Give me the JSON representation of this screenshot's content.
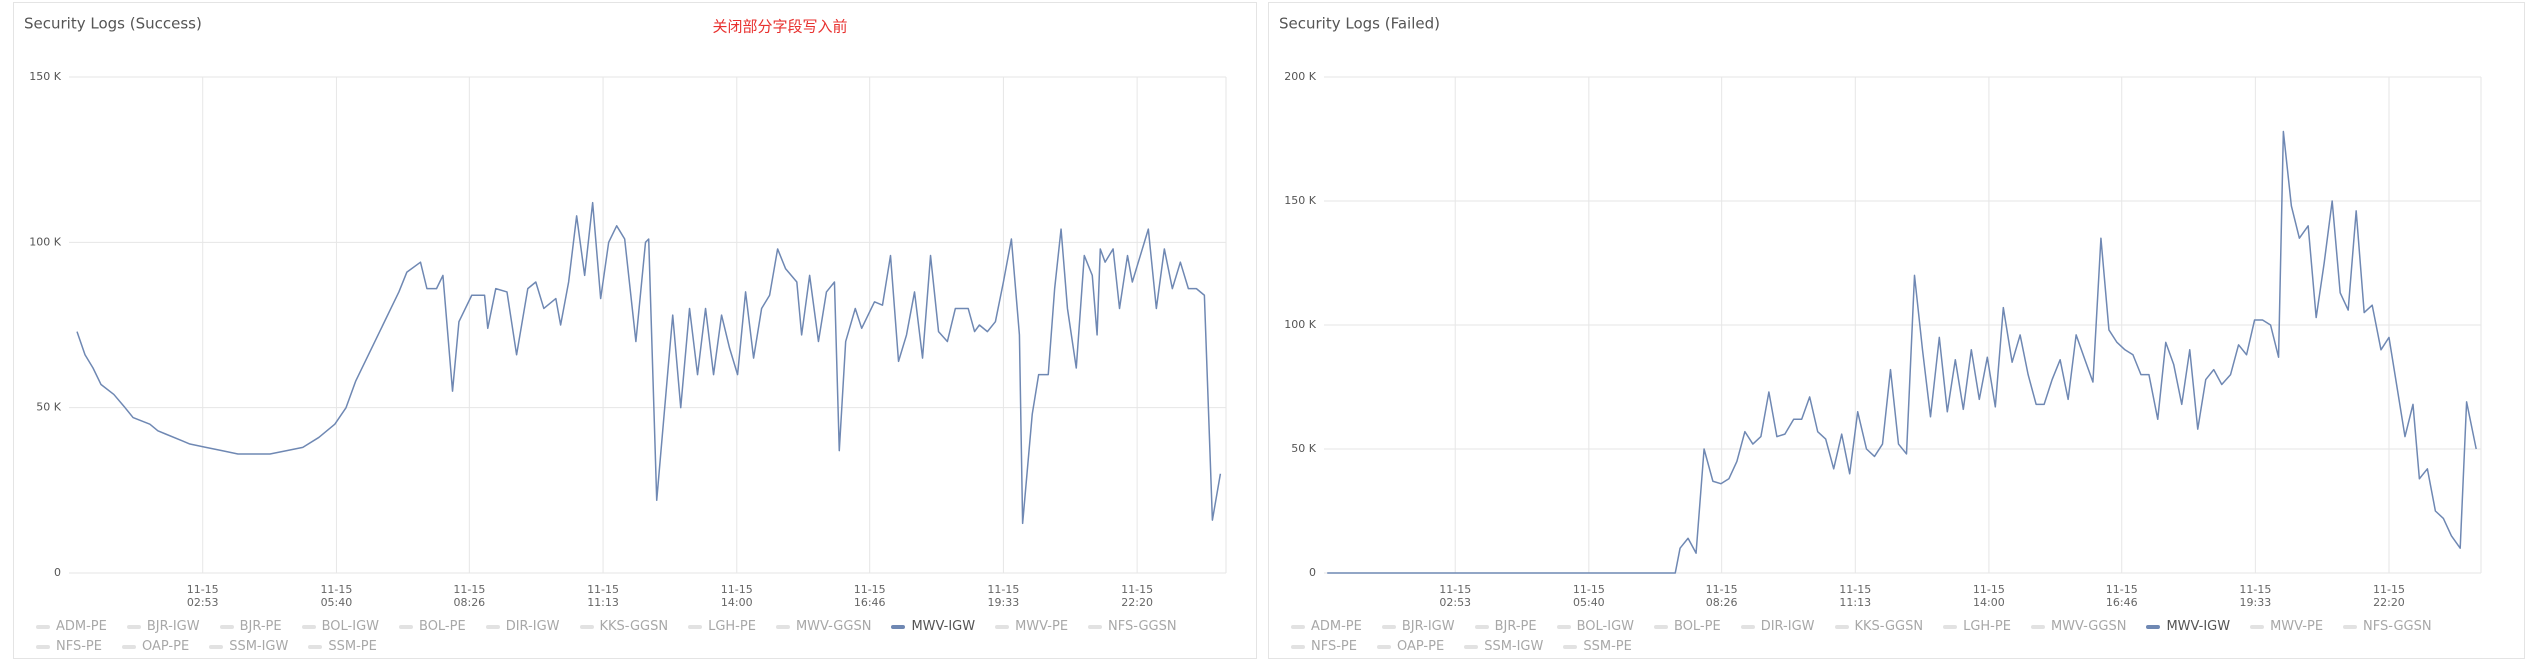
{
  "chart_data": [
    {
      "type": "line",
      "title": "Security Logs (Success)",
      "annotation": "关闭部分字段写入前",
      "xlim": [
        6,
        1451
      ],
      "ylim": [
        0,
        150000
      ],
      "grid": true,
      "xticks": [
        {
          "value": 173,
          "label": "11-15 02:53"
        },
        {
          "value": 340,
          "label": "11-15 05:40"
        },
        {
          "value": 506,
          "label": "11-15 08:26"
        },
        {
          "value": 673,
          "label": "11-15 11:13"
        },
        {
          "value": 840,
          "label": "11-15 14:00"
        },
        {
          "value": 1006,
          "label": "11-15 16:46"
        },
        {
          "value": 1173,
          "label": "11-15 19:33"
        },
        {
          "value": 1340,
          "label": "11-15 22:20"
        }
      ],
      "yticks": [
        0,
        {
          "value": 50000,
          "label": "50 K"
        },
        {
          "value": 100000,
          "label": "100 K"
        },
        {
          "value": 150000,
          "label": "150 K"
        }
      ],
      "x": [
        16,
        26,
        36,
        46,
        62,
        76,
        86,
        107,
        117,
        127,
        147,
        157,
        177,
        197,
        217,
        237,
        257,
        278,
        298,
        318,
        328,
        338,
        352,
        364,
        378,
        388,
        398,
        408,
        418,
        428,
        445,
        453,
        465,
        473,
        485,
        493,
        509,
        525,
        529,
        539,
        553,
        565,
        579,
        589,
        599,
        614,
        620,
        630,
        640,
        650,
        660,
        670,
        680,
        690,
        700,
        714,
        726,
        730,
        740,
        750,
        760,
        770,
        781,
        791,
        801,
        811,
        821,
        831,
        841,
        851,
        861,
        871,
        881,
        891,
        901,
        915,
        921,
        931,
        942,
        952,
        962,
        968,
        976,
        988,
        996,
        1012,
        1022,
        1032,
        1042,
        1052,
        1062,
        1072,
        1082,
        1092,
        1103,
        1113,
        1129,
        1137,
        1143,
        1153,
        1163,
        1173,
        1183,
        1193,
        1197,
        1209,
        1217,
        1229,
        1237,
        1245,
        1253,
        1264,
        1274,
        1284,
        1290,
        1294,
        1300,
        1310,
        1318,
        1328,
        1334,
        1344,
        1354,
        1364,
        1374,
        1384,
        1394,
        1404,
        1414,
        1424,
        1434,
        1444
      ],
      "series": [
        {
          "name": "MWV-IGW",
          "color": "#6f88b3",
          "values": [
            73000,
            66000,
            62000,
            57000,
            54000,
            50000,
            47000,
            45000,
            43000,
            42000,
            40000,
            39000,
            38000,
            37000,
            36000,
            36000,
            36000,
            37000,
            38000,
            41000,
            43000,
            45000,
            50000,
            58000,
            65000,
            70000,
            75000,
            80000,
            85000,
            91000,
            94000,
            86000,
            86000,
            90000,
            55000,
            76000,
            84000,
            84000,
            74000,
            86000,
            85000,
            66000,
            86000,
            88000,
            80000,
            83000,
            75000,
            88000,
            108000,
            90000,
            112000,
            83000,
            100000,
            105000,
            101000,
            70000,
            100000,
            101000,
            22000,
            50000,
            78000,
            50000,
            80000,
            60000,
            80000,
            60000,
            78000,
            68000,
            60000,
            85000,
            65000,
            80000,
            84000,
            98000,
            92000,
            88000,
            72000,
            90000,
            70000,
            85000,
            88000,
            37000,
            70000,
            80000,
            74000,
            82000,
            81000,
            96000,
            64000,
            72000,
            85000,
            65000,
            96000,
            73000,
            70000,
            80000,
            80000,
            73000,
            75000,
            73000,
            76000,
            88000,
            101000,
            72000,
            15000,
            48000,
            60000,
            60000,
            86000,
            104000,
            80000,
            62000,
            96000,
            90000,
            72000,
            98000,
            94000,
            98000,
            80000,
            96000,
            88000,
            96000,
            104000,
            80000,
            98000,
            86000,
            94000,
            86000,
            86000,
            84000,
            16000,
            30000
          ]
        }
      ],
      "legend": [
        {
          "name": "ADM-PE",
          "active": false
        },
        {
          "name": "BJR-IGW",
          "active": false
        },
        {
          "name": "BJR-PE",
          "active": false
        },
        {
          "name": "BOL-IGW",
          "active": false
        },
        {
          "name": "BOL-PE",
          "active": false
        },
        {
          "name": "DIR-IGW",
          "active": false
        },
        {
          "name": "KKS-GGSN",
          "active": false
        },
        {
          "name": "LGH-PE",
          "active": false
        },
        {
          "name": "MWV-GGSN",
          "active": false
        },
        {
          "name": "MWV-IGW",
          "active": true
        },
        {
          "name": "MWV-PE",
          "active": false
        },
        {
          "name": "NFS-GGSN",
          "active": false
        },
        {
          "name": "NFS-PE",
          "active": false
        },
        {
          "name": "OAP-PE",
          "active": false
        },
        {
          "name": "SSM-IGW",
          "active": false
        },
        {
          "name": "SSM-PE",
          "active": false
        }
      ]
    },
    {
      "type": "line",
      "title": "Security Logs (Failed)",
      "xlim": [
        9,
        1455
      ],
      "ylim": [
        0,
        200000
      ],
      "grid": true,
      "xticks": [
        {
          "value": 173,
          "label": "11-15 02:53"
        },
        {
          "value": 340,
          "label": "11-15 05:40"
        },
        {
          "value": 506,
          "label": "11-15 08:26"
        },
        {
          "value": 673,
          "label": "11-15 11:13"
        },
        {
          "value": 840,
          "label": "11-15 14:00"
        },
        {
          "value": 1006,
          "label": "11-15 16:46"
        },
        {
          "value": 1173,
          "label": "11-15 19:33"
        },
        {
          "value": 1340,
          "label": "11-15 22:20"
        }
      ],
      "yticks": [
        0,
        {
          "value": 50000,
          "label": "50 K"
        },
        {
          "value": 100000,
          "label": "100 K"
        },
        {
          "value": 150000,
          "label": "150 K"
        },
        {
          "value": 200000,
          "label": "200 K"
        }
      ],
      "x": [
        13,
        70,
        131,
        191,
        252,
        313,
        373,
        448,
        454,
        464,
        474,
        484,
        495,
        505,
        515,
        525,
        535,
        545,
        555,
        565,
        575,
        585,
        596,
        606,
        616,
        626,
        636,
        646,
        656,
        666,
        676,
        687,
        697,
        707,
        717,
        727,
        737,
        747,
        757,
        767,
        778,
        788,
        798,
        808,
        818,
        828,
        838,
        848,
        858,
        869,
        879,
        889,
        899,
        909,
        919,
        929,
        939,
        949,
        960,
        970,
        980,
        990,
        1000,
        1010,
        1020,
        1030,
        1040,
        1051,
        1061,
        1071,
        1081,
        1091,
        1101,
        1111,
        1121,
        1131,
        1142,
        1152,
        1162,
        1172,
        1182,
        1192,
        1202,
        1208,
        1218,
        1228,
        1239,
        1249,
        1259,
        1269,
        1279,
        1289,
        1299,
        1309,
        1319,
        1330,
        1340,
        1350,
        1360,
        1370,
        1378,
        1388,
        1398,
        1408,
        1418,
        1429,
        1437,
        1449
      ],
      "series": [
        {
          "name": "MWV-IGW",
          "color": "#6f88b3",
          "values": [
            0,
            0,
            0,
            0,
            0,
            0,
            0,
            0,
            10000,
            14000,
            8000,
            50000,
            37000,
            36000,
            38000,
            45000,
            57000,
            52000,
            55000,
            73000,
            55000,
            56000,
            62000,
            62000,
            71000,
            57000,
            54000,
            42000,
            56000,
            40000,
            65000,
            50000,
            47000,
            52000,
            82000,
            52000,
            48000,
            120000,
            90000,
            63000,
            95000,
            65000,
            86000,
            66000,
            90000,
            70000,
            87000,
            67000,
            107000,
            85000,
            96000,
            80000,
            68000,
            68000,
            78000,
            86000,
            70000,
            96000,
            86000,
            77000,
            135000,
            98000,
            93000,
            90000,
            88000,
            80000,
            80000,
            62000,
            93000,
            84000,
            68000,
            90000,
            58000,
            78000,
            82000,
            76000,
            80000,
            92000,
            88000,
            102000,
            102000,
            100000,
            87000,
            178000,
            148000,
            135000,
            140000,
            103000,
            125000,
            150000,
            113000,
            106000,
            146000,
            105000,
            108000,
            90000,
            95000,
            75000,
            55000,
            68000,
            38000,
            42000,
            25000,
            22000,
            15000,
            10000,
            69000,
            50000
          ]
        }
      ],
      "legend": [
        {
          "name": "ADM-PE",
          "active": false
        },
        {
          "name": "BJR-IGW",
          "active": false
        },
        {
          "name": "BJR-PE",
          "active": false
        },
        {
          "name": "BOL-IGW",
          "active": false
        },
        {
          "name": "BOL-PE",
          "active": false
        },
        {
          "name": "DIR-IGW",
          "active": false
        },
        {
          "name": "KKS-GGSN",
          "active": false
        },
        {
          "name": "LGH-PE",
          "active": false
        },
        {
          "name": "MWV-GGSN",
          "active": false
        },
        {
          "name": "MWV-IGW",
          "active": true
        },
        {
          "name": "MWV-PE",
          "active": false
        },
        {
          "name": "NFS-GGSN",
          "active": false
        },
        {
          "name": "NFS-PE",
          "active": false
        },
        {
          "name": "OAP-PE",
          "active": false
        },
        {
          "name": "SSM-IGW",
          "active": false
        },
        {
          "name": "SSM-PE",
          "active": false
        }
      ]
    }
  ]
}
